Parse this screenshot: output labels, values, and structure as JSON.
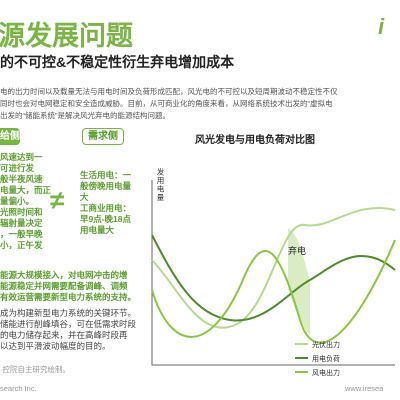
{
  "header": {
    "title": "源发展问题",
    "subtitle": "的不可控&不稳定性衍生弃电增加成本",
    "brand": "i"
  },
  "intro": [
    "电的出力时间以及载量无法与用电时间及负荷形成匹配，风光电的不可控以及短周期波动不稳定性不仅",
    "同时也会对电网稳定和安全造成威胁。目前，从可商业化的角度来看，从网络系统技术出发的“虚拟电",
    "出发的“储能系统”是解决风光弃电的能源结构问题。"
  ],
  "supply": {
    "label": "给侧",
    "lines": [
      "风速达到一",
      "可进行发",
      "般半夜风速",
      "电量大，而正",
      "量偏小。",
      "光照时间和",
      "辐射量决定",
      "，一般早晚",
      "小，正午发"
    ]
  },
  "demand": {
    "label": "需求侧",
    "lines": [
      "生活用电：一",
      "般傍晚用电量",
      "大",
      "工商业用电：",
      "早9点-晚18点",
      "用电量大"
    ]
  },
  "not_equal": "≠",
  "notes": {
    "block1": [
      "能源大规模接入，对电网冲击的增",
      "能源稳定并网需要配备调峰、调频",
      "有效运营需要新型电力系统的支持。"
    ],
    "block2": [
      "成为构建新型电力系统的关键环节。",
      "储能进行削峰填谷，可在低需求时段",
      "的电力储存起来，并在高峰时段再",
      "以达到平滑波动幅度的目的。"
    ]
  },
  "chart": {
    "title": "风光发电与用电负荷对比图",
    "y_label": "发用电量",
    "annotation": "弃电",
    "legend": [
      "光伏出力",
      "用电负荷",
      "风电出力"
    ]
  },
  "footer": {
    "source": "·控院自主研究绘制。",
    "company": "search Inc.",
    "url": "www.iresea"
  }
}
